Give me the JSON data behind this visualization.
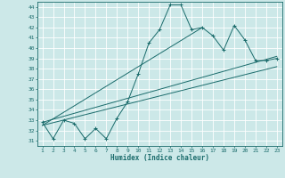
{
  "xlabel": "Humidex (Indice chaleur)",
  "bg_color": "#cce8e8",
  "grid_color": "#ffffff",
  "line_color": "#1a6b6b",
  "xlim_min": 0.5,
  "xlim_max": 23.5,
  "ylim_min": 30.5,
  "ylim_max": 44.5,
  "xticks": [
    1,
    2,
    3,
    4,
    5,
    6,
    7,
    8,
    9,
    10,
    11,
    12,
    13,
    14,
    15,
    16,
    17,
    18,
    19,
    20,
    21,
    22,
    23
  ],
  "yticks": [
    31,
    32,
    33,
    34,
    35,
    36,
    37,
    38,
    39,
    40,
    41,
    42,
    43,
    44
  ],
  "series1_x": [
    1,
    2,
    3,
    4,
    5,
    6,
    7,
    8,
    9,
    10,
    11,
    12,
    13,
    14,
    15,
    16,
    17,
    18,
    19,
    20,
    21,
    22,
    23
  ],
  "series1_y": [
    32.8,
    31.2,
    33.0,
    32.7,
    31.2,
    32.2,
    31.2,
    33.2,
    34.8,
    37.5,
    40.5,
    41.8,
    44.2,
    44.2,
    41.8,
    42.0,
    41.2,
    39.8,
    42.2,
    40.8,
    38.8,
    38.8,
    39.0
  ],
  "trend1_x": [
    1,
    23
  ],
  "trend1_y": [
    32.8,
    39.2
  ],
  "trend2_x": [
    1,
    23
  ],
  "trend2_y": [
    32.5,
    38.2
  ],
  "trend3_x": [
    1,
    16
  ],
  "trend3_y": [
    32.5,
    42.0
  ]
}
